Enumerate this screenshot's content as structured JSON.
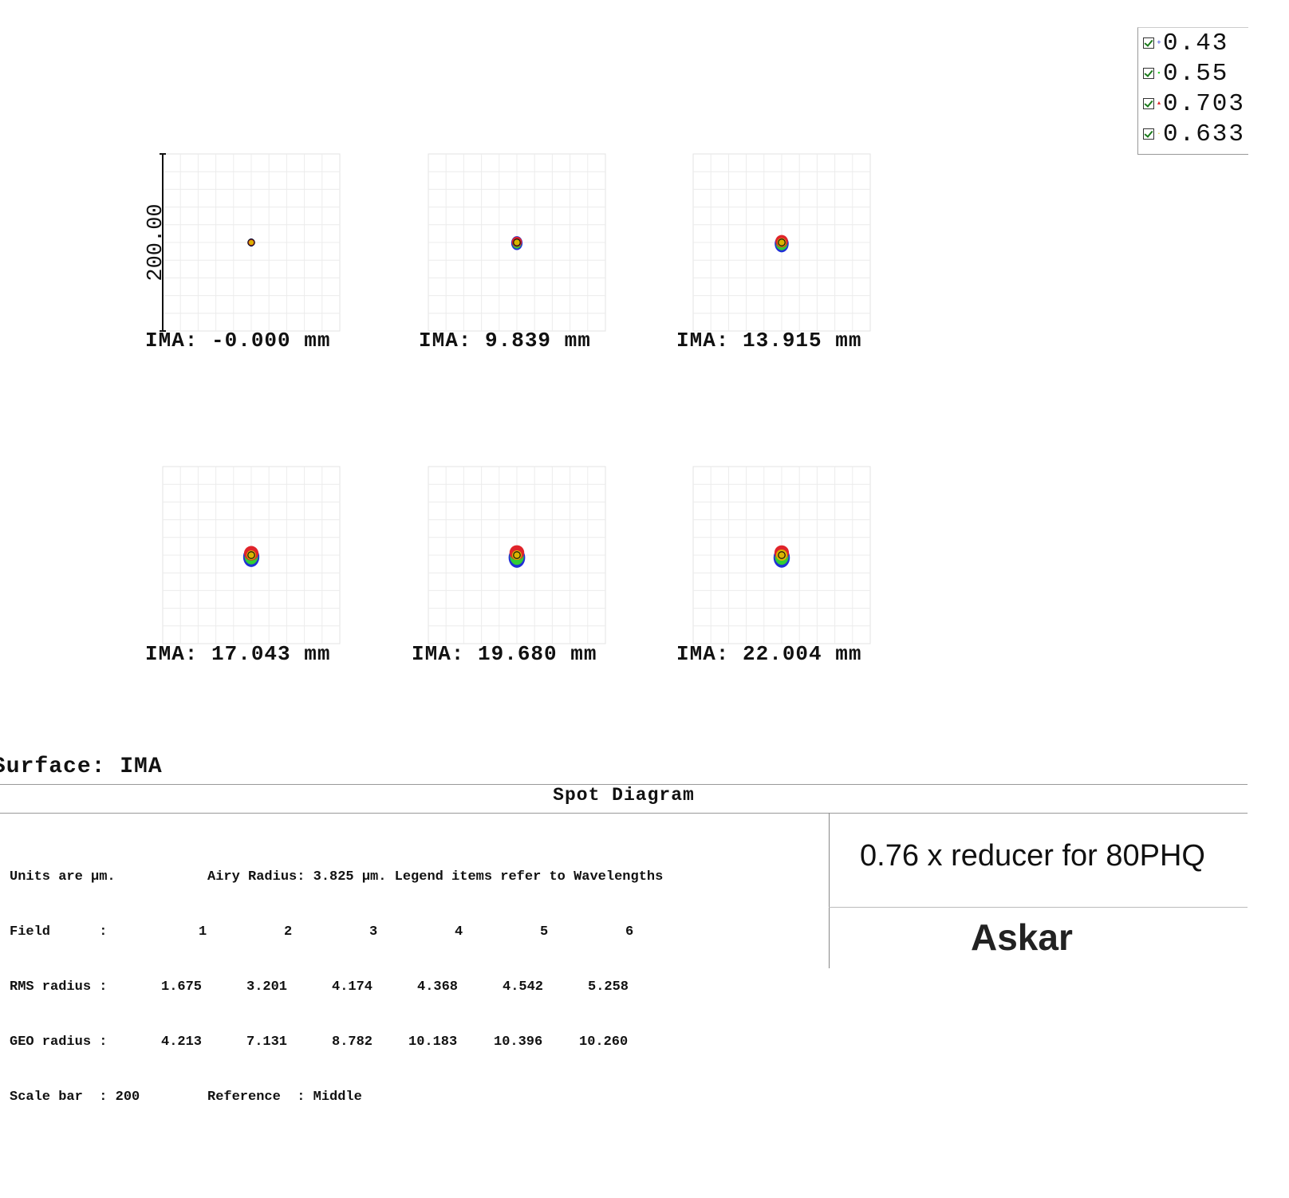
{
  "legend": {
    "items": [
      {
        "label": "0.43",
        "color": "#1f2fd6",
        "marker": "+"
      },
      {
        "label": "0.55",
        "color": "#33cc33",
        "marker": "▪"
      },
      {
        "label": "0.703",
        "color": "#e0242a",
        "marker": "▲"
      },
      {
        "label": "0.633",
        "color": "#d9b400",
        "marker": "·"
      }
    ]
  },
  "scale_bar_label": "200.00",
  "fields": [
    {
      "label": "IMA: -0.000 mm",
      "rms": 1.675,
      "geo": 4.213
    },
    {
      "label": "IMA: 9.839 mm",
      "rms": 3.201,
      "geo": 7.131
    },
    {
      "label": "IMA: 13.915 mm",
      "rms": 4.174,
      "geo": 8.782
    },
    {
      "label": "IMA: 17.043 mm",
      "rms": 4.368,
      "geo": 10.183
    },
    {
      "label": "IMA: 19.680 mm",
      "rms": 4.542,
      "geo": 10.396
    },
    {
      "label": "IMA: 22.004 mm",
      "rms": 5.258,
      "geo": 10.26
    }
  ],
  "surface_label": "Surface: IMA",
  "diagram_title": "Spot Diagram",
  "info": {
    "units": "Units are µm.",
    "airy": "Airy Radius: 3.825 µm. Legend items refer to Wavelengths",
    "field_label": "Field      :",
    "field_numbers": [
      "1",
      "2",
      "3",
      "4",
      "5",
      "6"
    ],
    "rms_label": "RMS radius :",
    "rms_values": [
      "1.675",
      "3.201",
      "4.174",
      "4.368",
      "4.542",
      "5.258"
    ],
    "geo_label": "GEO radius :",
    "geo_values": [
      "4.213",
      "7.131",
      "8.782",
      "10.183",
      "10.396",
      "10.260"
    ],
    "scale_label": "Scale bar  : 200",
    "reference_label": "Reference  : Middle"
  },
  "caption": "0.76 x reducer for 80PHQ",
  "logo": "Askar",
  "chart_data": {
    "type": "scatter",
    "title": "Spot Diagram",
    "surface": "IMA",
    "units": "µm",
    "airy_radius": 3.825,
    "scale_bar": 200,
    "reference": "Middle",
    "wavelengths": [
      0.43,
      0.55,
      0.703,
      0.633
    ],
    "fields": [
      "-0.000 mm",
      "9.839 mm",
      "13.915 mm",
      "17.043 mm",
      "19.680 mm",
      "22.004 mm"
    ],
    "rms_radius": [
      1.675,
      3.201,
      4.174,
      4.368,
      4.542,
      5.258
    ],
    "geo_radius": [
      4.213,
      7.131,
      8.782,
      10.183,
      10.396,
      10.26
    ],
    "grid": true
  }
}
